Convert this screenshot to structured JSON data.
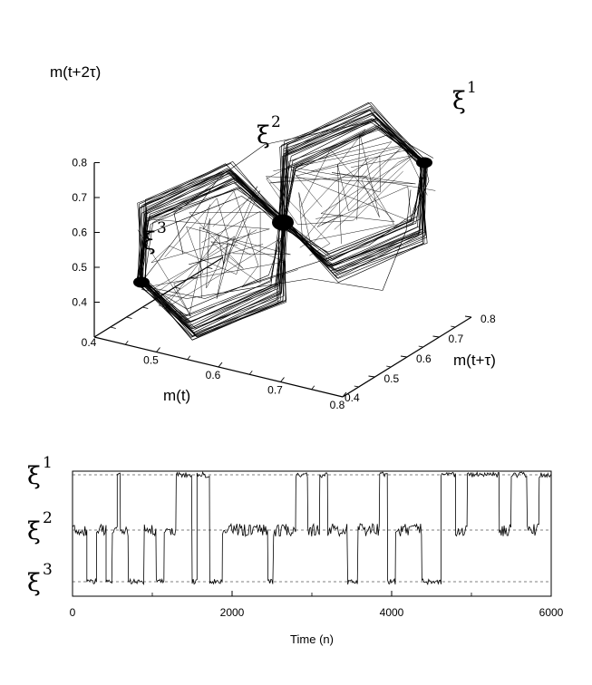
{
  "chart_data": [
    {
      "type": "line",
      "subtype": "3d-phase-portrait",
      "axes": {
        "x": {
          "label": "m(t)",
          "range": [
            0.4,
            0.8
          ],
          "ticks": [
            "0.4",
            "0.5",
            "0.6",
            "0.7",
            "0.8"
          ]
        },
        "y": {
          "label": "m(t+τ)",
          "range": [
            0.4,
            0.8
          ],
          "ticks": [
            "0.4",
            "0.5",
            "0.6",
            "0.7",
            "0.8"
          ]
        },
        "z": {
          "label": "m(t+2τ)",
          "range": [
            0.3,
            0.8
          ],
          "ticks": [
            "0.4",
            "0.5",
            "0.6",
            "0.7",
            "0.8"
          ]
        }
      },
      "attractors": [
        {
          "label": "ξ",
          "index": "1",
          "value": 0.75
        },
        {
          "label": "ξ",
          "index": "2",
          "value": 0.6
        },
        {
          "label": "ξ",
          "index": "3",
          "value": 0.45
        }
      ]
    },
    {
      "type": "line",
      "xlabel": "Time (n)",
      "xlim": [
        0,
        6000
      ],
      "xticks": [
        "0",
        "2000",
        "4000",
        "6000"
      ],
      "levels": [
        {
          "label": "ξ",
          "index": "1",
          "value": 1
        },
        {
          "label": "ξ",
          "index": "2",
          "value": 2
        },
        {
          "label": "ξ",
          "index": "3",
          "value": 3
        }
      ],
      "segments": [
        {
          "from": 0,
          "to": 180,
          "level": 2
        },
        {
          "from": 180,
          "to": 300,
          "level": 3
        },
        {
          "from": 300,
          "to": 420,
          "level": 2
        },
        {
          "from": 420,
          "to": 500,
          "level": 3
        },
        {
          "from": 500,
          "to": 560,
          "level": 2
        },
        {
          "from": 560,
          "to": 600,
          "level": 1
        },
        {
          "from": 600,
          "to": 700,
          "level": 2
        },
        {
          "from": 700,
          "to": 900,
          "level": 3
        },
        {
          "from": 900,
          "to": 1050,
          "level": 2
        },
        {
          "from": 1050,
          "to": 1150,
          "level": 3
        },
        {
          "from": 1150,
          "to": 1300,
          "level": 2
        },
        {
          "from": 1300,
          "to": 1500,
          "level": 1
        },
        {
          "from": 1500,
          "to": 1560,
          "level": 3
        },
        {
          "from": 1560,
          "to": 1720,
          "level": 1
        },
        {
          "from": 1720,
          "to": 1880,
          "level": 3
        },
        {
          "from": 1880,
          "to": 2450,
          "level": 2
        },
        {
          "from": 2450,
          "to": 2520,
          "level": 3
        },
        {
          "from": 2520,
          "to": 2800,
          "level": 2
        },
        {
          "from": 2800,
          "to": 2950,
          "level": 1
        },
        {
          "from": 2950,
          "to": 3100,
          "level": 2
        },
        {
          "from": 3100,
          "to": 3200,
          "level": 1
        },
        {
          "from": 3200,
          "to": 3450,
          "level": 2
        },
        {
          "from": 3450,
          "to": 3580,
          "level": 3
        },
        {
          "from": 3580,
          "to": 3850,
          "level": 2
        },
        {
          "from": 3850,
          "to": 3950,
          "level": 1
        },
        {
          "from": 3950,
          "to": 4050,
          "level": 3
        },
        {
          "from": 4050,
          "to": 4380,
          "level": 2
        },
        {
          "from": 4380,
          "to": 4620,
          "level": 3
        },
        {
          "from": 4620,
          "to": 4800,
          "level": 1
        },
        {
          "from": 4800,
          "to": 4950,
          "level": 2
        },
        {
          "from": 4950,
          "to": 5350,
          "level": 1
        },
        {
          "from": 5350,
          "to": 5500,
          "level": 2
        },
        {
          "from": 5500,
          "to": 5700,
          "level": 1
        },
        {
          "from": 5700,
          "to": 5850,
          "level": 2
        },
        {
          "from": 5850,
          "to": 6000,
          "level": 1
        }
      ]
    }
  ]
}
